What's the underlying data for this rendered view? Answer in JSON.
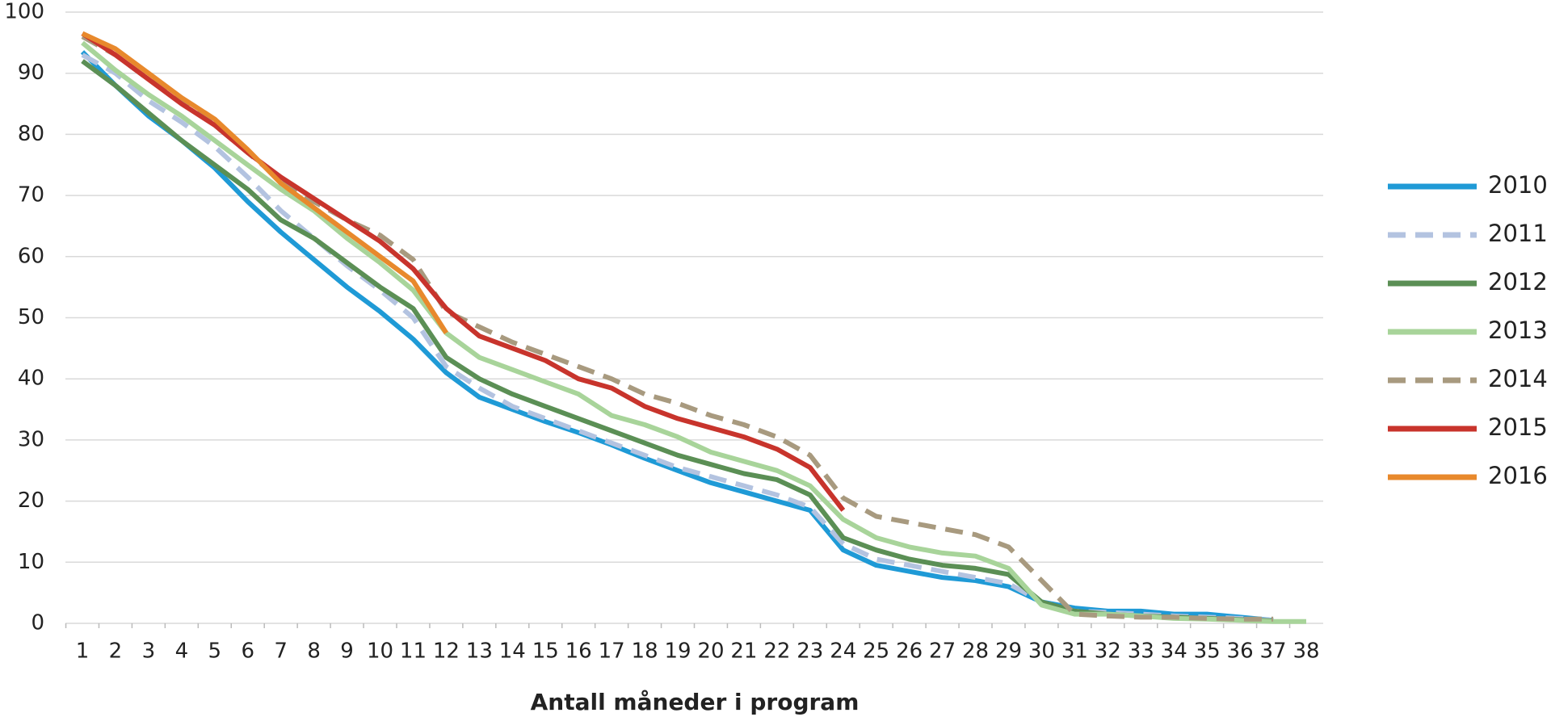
{
  "chart_data": {
    "type": "line",
    "x_label": "Antall måneder i program",
    "categories": [
      "1",
      "2",
      "3",
      "4",
      "5",
      "6",
      "7",
      "8",
      "9",
      "10",
      "11",
      "12",
      "13",
      "14",
      "15",
      "16",
      "17",
      "18",
      "19",
      "20",
      "21",
      "22",
      "23",
      "24",
      "25",
      "26",
      "27",
      "28",
      "29",
      "30",
      "31",
      "32",
      "33",
      "34",
      "35",
      "36",
      "37",
      "38"
    ],
    "ylim": [
      0,
      100
    ],
    "yticks": [
      0,
      10,
      20,
      30,
      40,
      50,
      60,
      70,
      80,
      90,
      100
    ],
    "grid": true,
    "legend": "right",
    "series": [
      {
        "name": "2010",
        "color": "#1f9ad6",
        "dashed": false,
        "values": [
          93.5,
          88,
          83,
          79,
          74.5,
          69,
          64,
          59.5,
          55,
          51,
          46.5,
          41,
          37,
          35,
          33,
          31.2,
          29.2,
          27,
          25,
          23,
          21.5,
          20,
          18.5,
          12,
          9.5,
          8.5,
          7.5,
          7,
          6,
          3.5,
          2.5,
          2,
          2,
          1.5,
          1.5,
          1,
          0.5,
          null
        ]
      },
      {
        "name": "2011",
        "color": "#b3c3e0",
        "dashed": true,
        "values": [
          93,
          90,
          85.5,
          82,
          78,
          73,
          67.5,
          63,
          58.5,
          54.5,
          50,
          42,
          38.5,
          35.5,
          33.5,
          31.5,
          29.5,
          27.5,
          25.5,
          24,
          22.5,
          21,
          19,
          13,
          10.5,
          9.5,
          8.5,
          7.5,
          6.5,
          3.5,
          2,
          1.8,
          1.5,
          1.2,
          1,
          0.8,
          0.5,
          null
        ]
      },
      {
        "name": "2012",
        "color": "#5b8f55",
        "dashed": false,
        "values": [
          92,
          88,
          83.5,
          79,
          75,
          71,
          66,
          63,
          59,
          55,
          51.5,
          43.5,
          40,
          37.5,
          35.5,
          33.5,
          31.5,
          29.5,
          27.5,
          26,
          24.5,
          23.5,
          21,
          14,
          12,
          10.5,
          9.5,
          9,
          8,
          3.5,
          2,
          1.5,
          1.2,
          1,
          0.8,
          0.6,
          0.4,
          null
        ]
      },
      {
        "name": "2013",
        "color": "#a8d49a",
        "dashed": false,
        "values": [
          95,
          90.5,
          86.5,
          83,
          79,
          75,
          71,
          67.5,
          63,
          59,
          54.5,
          47.5,
          43.5,
          41.5,
          39.5,
          37.5,
          34,
          32.5,
          30.5,
          28,
          26.5,
          25,
          22.5,
          17,
          14,
          12.5,
          11.5,
          11,
          9,
          3,
          1.5,
          1.5,
          1.2,
          0.8,
          0.7,
          0.5,
          0.3,
          0.3
        ]
      },
      {
        "name": "2014",
        "color": "#a89a7f",
        "dashed": true,
        "values": [
          96,
          93,
          89,
          85.5,
          81.5,
          77,
          72.5,
          69,
          66,
          63.5,
          59.5,
          51,
          48.5,
          46,
          44,
          42,
          40,
          37.5,
          36,
          34,
          32.5,
          30.5,
          27.5,
          20.5,
          17.5,
          16.5,
          15.5,
          14.5,
          12.5,
          7,
          1.5,
          1.2,
          1,
          1,
          0.8,
          0.7,
          0.7,
          null
        ]
      },
      {
        "name": "2015",
        "color": "#c8342c",
        "dashed": false,
        "values": [
          96.5,
          93,
          89,
          85,
          81.5,
          77,
          73,
          69.5,
          66,
          62.5,
          58,
          51.5,
          47,
          45,
          43,
          40,
          38.5,
          35.5,
          33.5,
          32,
          30.5,
          28.5,
          25.5,
          18.5,
          null,
          null,
          null,
          null,
          null,
          null,
          null,
          null,
          null,
          null,
          null,
          null,
          null,
          null
        ]
      },
      {
        "name": "2016",
        "color": "#e8892c",
        "dashed": false,
        "values": [
          96.5,
          94,
          90,
          86,
          82.5,
          77.5,
          72,
          68,
          64,
          60,
          56,
          47.5,
          null,
          null,
          null,
          null,
          null,
          null,
          null,
          null,
          null,
          null,
          null,
          null,
          null,
          null,
          null,
          null,
          null,
          null,
          null,
          null,
          null,
          null,
          null,
          null,
          null,
          null
        ]
      }
    ]
  }
}
